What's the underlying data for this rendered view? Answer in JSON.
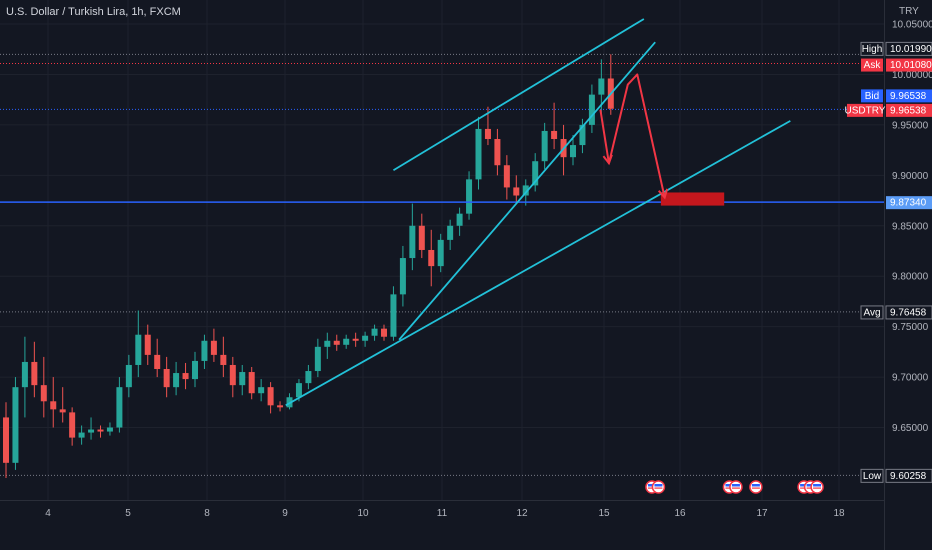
{
  "header": {
    "title": "U.S. Dollar / Turkish Lira, 1h, FXCM",
    "currency": "TRY"
  },
  "colors": {
    "background": "#131722",
    "grid": "#1e222d",
    "up": "#26a69a",
    "down": "#ef5350",
    "trendline": "#22c1d8",
    "level": "#2962ff",
    "arrow": "#f23645",
    "target_box": "#c4171d"
  },
  "chart_data": {
    "type": "candlestick",
    "title": "U.S. Dollar / Turkish Lira, 1h, FXCM",
    "x_ticks": [
      "4",
      "5",
      "8",
      "9",
      "10",
      "11",
      "12",
      "15",
      "16",
      "17",
      "18"
    ],
    "y_ticks": [
      "10.05000",
      "10.00000",
      "9.95000",
      "9.90000",
      "9.85000",
      "9.80000",
      "9.75000",
      "9.70000",
      "9.65000"
    ],
    "ylim": [
      9.595,
      10.052
    ],
    "grid": true,
    "price_tags": [
      {
        "label": "High",
        "value": "10.01990",
        "color": "#131722",
        "border": "#787b86"
      },
      {
        "label": "Ask",
        "value": "10.01080",
        "color": "#f23645"
      },
      {
        "label": "Bid",
        "value": "9.96538",
        "color": "#2962ff"
      },
      {
        "label": "USDTRY",
        "value": "9.96538",
        "color": "#f23645"
      },
      {
        "label": "",
        "value": "9.87340",
        "color": "#5b9cf6"
      },
      {
        "label": "Avg",
        "value": "9.76458",
        "color": "#131722",
        "border": "#787b86"
      },
      {
        "label": "Low",
        "value": "9.60258",
        "color": "#131722",
        "border": "#787b86"
      }
    ],
    "levels": {
      "high": 10.0199,
      "ask": 10.0108,
      "bid": 9.96538,
      "horizontal": 9.8734,
      "avg": 9.76458,
      "low": 9.60258
    },
    "trendlines": [
      {
        "name": "channel-upper",
        "t1": 41.0,
        "p1": 9.905,
        "t2": 67.5,
        "p2": 10.055
      },
      {
        "name": "channel-inner",
        "t1": 41.6,
        "p1": 9.737,
        "t2": 68.7,
        "p2": 10.032
      },
      {
        "name": "support",
        "t1": 29.6,
        "p1": 9.672,
        "t2": 83.0,
        "p2": 9.954
      }
    ],
    "projection_arrow": [
      {
        "t": 62.9,
        "p": 9.965
      },
      {
        "t": 63.8,
        "p": 9.912
      },
      {
        "t": 65.8,
        "p": 9.99
      },
      {
        "t": 66.8,
        "p": 10.0
      },
      {
        "t": 69.7,
        "p": 9.878
      }
    ],
    "target_zone": {
      "t1": 69.3,
      "t2": 76.0,
      "p1": 9.883,
      "p2": 9.87
    },
    "event_markers": [
      {
        "t": 69.2,
        "count": 2
      },
      {
        "t": 77.4,
        "count": 2
      },
      {
        "t": 80.2,
        "count": 1
      },
      {
        "t": 85.3,
        "count": 3
      }
    ],
    "candles": [
      [
        9.66,
        9.675,
        9.6,
        9.615
      ],
      [
        9.615,
        9.7,
        9.608,
        9.69
      ],
      [
        9.69,
        9.74,
        9.66,
        9.715
      ],
      [
        9.715,
        9.735,
        9.68,
        9.692
      ],
      [
        9.692,
        9.72,
        9.66,
        9.676
      ],
      [
        9.676,
        9.7,
        9.65,
        9.668
      ],
      [
        9.668,
        9.69,
        9.655,
        9.665
      ],
      [
        9.665,
        9.67,
        9.632,
        9.64
      ],
      [
        9.64,
        9.652,
        9.633,
        9.645
      ],
      [
        9.645,
        9.66,
        9.638,
        9.648
      ],
      [
        9.648,
        9.652,
        9.64,
        9.646
      ],
      [
        9.646,
        9.655,
        9.642,
        9.65
      ],
      [
        9.65,
        9.7,
        9.645,
        9.69
      ],
      [
        9.69,
        9.722,
        9.68,
        9.712
      ],
      [
        9.712,
        9.766,
        9.7,
        9.742
      ],
      [
        9.742,
        9.752,
        9.712,
        9.722
      ],
      [
        9.722,
        9.738,
        9.7,
        9.708
      ],
      [
        9.708,
        9.72,
        9.68,
        9.69
      ],
      [
        9.69,
        9.715,
        9.682,
        9.704
      ],
      [
        9.704,
        9.714,
        9.688,
        9.698
      ],
      [
        9.698,
        9.725,
        9.69,
        9.716
      ],
      [
        9.716,
        9.742,
        9.708,
        9.736
      ],
      [
        9.736,
        9.748,
        9.715,
        9.722
      ],
      [
        9.722,
        9.74,
        9.7,
        9.712
      ],
      [
        9.712,
        9.72,
        9.68,
        9.692
      ],
      [
        9.692,
        9.712,
        9.682,
        9.705
      ],
      [
        9.705,
        9.71,
        9.678,
        9.684
      ],
      [
        9.684,
        9.698,
        9.676,
        9.69
      ],
      [
        9.69,
        9.695,
        9.664,
        9.672
      ],
      [
        9.672,
        9.676,
        9.666,
        9.67
      ],
      [
        9.67,
        9.684,
        9.668,
        9.68
      ],
      [
        9.68,
        9.698,
        9.676,
        9.694
      ],
      [
        9.694,
        9.712,
        9.688,
        9.706
      ],
      [
        9.706,
        9.738,
        9.7,
        9.73
      ],
      [
        9.73,
        9.744,
        9.718,
        9.736
      ],
      [
        9.736,
        9.742,
        9.726,
        9.732
      ],
      [
        9.732,
        9.742,
        9.728,
        9.738
      ],
      [
        9.738,
        9.744,
        9.73,
        9.736
      ],
      [
        9.736,
        9.745,
        9.73,
        9.741
      ],
      [
        9.741,
        9.752,
        9.736,
        9.748
      ],
      [
        9.748,
        9.752,
        9.736,
        9.74
      ],
      [
        9.74,
        9.79,
        9.736,
        9.782
      ],
      [
        9.782,
        9.83,
        9.77,
        9.818
      ],
      [
        9.818,
        9.872,
        9.806,
        9.85
      ],
      [
        9.85,
        9.862,
        9.818,
        9.826
      ],
      [
        9.826,
        9.846,
        9.79,
        9.81
      ],
      [
        9.81,
        9.842,
        9.804,
        9.836
      ],
      [
        9.836,
        9.856,
        9.826,
        9.85
      ],
      [
        9.85,
        9.868,
        9.84,
        9.862
      ],
      [
        9.862,
        9.904,
        9.856,
        9.896
      ],
      [
        9.896,
        9.958,
        9.886,
        9.946
      ],
      [
        9.946,
        9.968,
        9.93,
        9.936
      ],
      [
        9.936,
        9.946,
        9.9,
        9.91
      ],
      [
        9.91,
        9.92,
        9.876,
        9.888
      ],
      [
        9.888,
        9.9,
        9.872,
        9.88
      ],
      [
        9.88,
        9.896,
        9.87,
        9.89
      ],
      [
        9.89,
        9.922,
        9.884,
        9.914
      ],
      [
        9.914,
        9.952,
        9.906,
        9.944
      ],
      [
        9.944,
        9.972,
        9.926,
        9.936
      ],
      [
        9.936,
        9.95,
        9.9,
        9.918
      ],
      [
        9.918,
        9.94,
        9.91,
        9.93
      ],
      [
        9.93,
        9.956,
        9.922,
        9.95
      ],
      [
        9.95,
        9.99,
        9.942,
        9.98
      ],
      [
        9.98,
        10.015,
        9.96,
        9.996
      ],
      [
        9.996,
        10.02,
        9.96,
        9.966
      ]
    ]
  }
}
